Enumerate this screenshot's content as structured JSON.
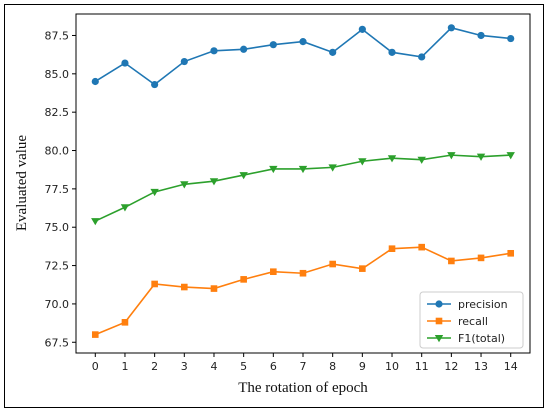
{
  "chart_data": {
    "type": "line",
    "title": "",
    "xlabel": "The rotation of epoch",
    "ylabel": "Evaluated value",
    "x": [
      0,
      1,
      2,
      3,
      4,
      5,
      6,
      7,
      8,
      9,
      10,
      11,
      12,
      13,
      14
    ],
    "xlim": [
      -0.65,
      14.65
    ],
    "ylim": [
      66.8,
      88.9
    ],
    "yticks": [
      67.5,
      70.0,
      72.5,
      75.0,
      77.5,
      80.0,
      82.5,
      85.0,
      87.5
    ],
    "ytick_labels": [
      "67.5",
      "70.0",
      "72.5",
      "75.0",
      "77.5",
      "80.0",
      "82.5",
      "85.0",
      "87.5"
    ],
    "grid": false,
    "legend_position": "lower-right",
    "series": [
      {
        "name": "precision",
        "color": "#1f77b4",
        "marker": "circle",
        "values": [
          84.5,
          85.7,
          84.3,
          85.8,
          86.5,
          86.6,
          86.9,
          87.1,
          86.4,
          87.9,
          86.4,
          86.1,
          88.0,
          87.5,
          87.3
        ]
      },
      {
        "name": "recall",
        "color": "#ff7f0e",
        "marker": "square",
        "values": [
          68.0,
          68.8,
          71.3,
          71.1,
          71.0,
          71.6,
          72.1,
          72.0,
          72.6,
          72.3,
          73.6,
          73.7,
          72.8,
          73.0,
          73.3
        ]
      },
      {
        "name": "F1(total)",
        "color": "#2ca02c",
        "marker": "triangle-down",
        "values": [
          75.4,
          76.3,
          77.3,
          77.8,
          78.0,
          78.4,
          78.8,
          78.8,
          78.9,
          79.3,
          79.5,
          79.4,
          79.7,
          79.6,
          79.7
        ]
      }
    ]
  }
}
